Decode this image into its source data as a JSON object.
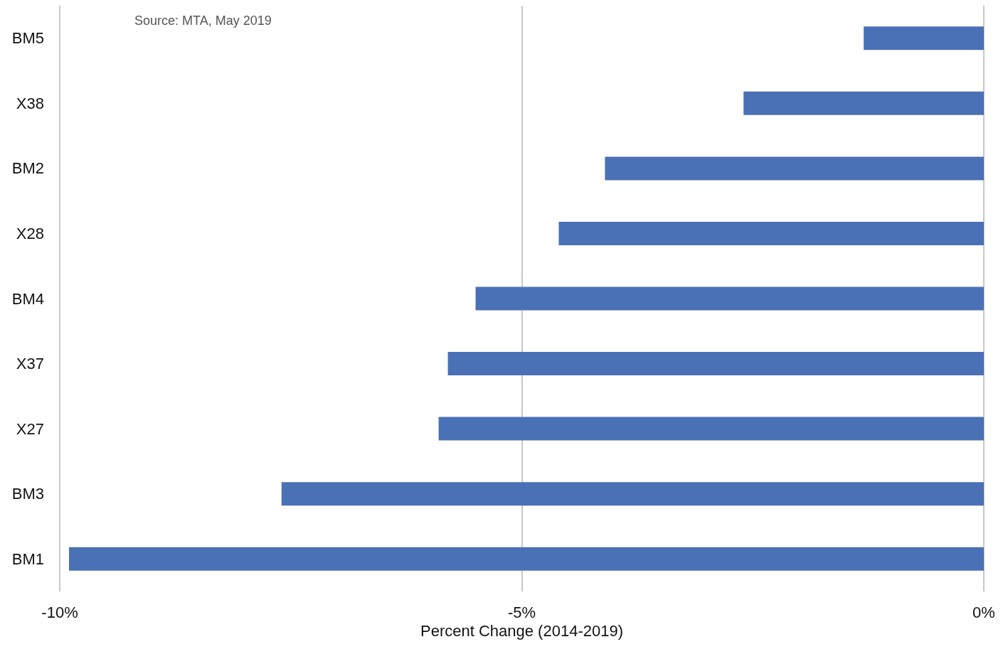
{
  "chart_data": {
    "type": "bar",
    "orientation": "horizontal",
    "categories": [
      "BM5",
      "X38",
      "BM2",
      "X28",
      "BM4",
      "X37",
      "X27",
      "BM3",
      "BM1"
    ],
    "values": [
      -1.3,
      -2.6,
      -4.1,
      -4.6,
      -5.5,
      -5.8,
      -5.9,
      -7.6,
      -9.9
    ],
    "color": "#4a70b5",
    "xlim": [
      -10,
      0
    ],
    "xticks": [
      {
        "value": -10,
        "label": "-10%"
      },
      {
        "value": -5,
        "label": "-5%"
      },
      {
        "value": 0,
        "label": "0%"
      }
    ],
    "xlabel": "Percent Change (2014-2019)",
    "annotations": [
      "Source: MTA, May 2019"
    ],
    "grid": "x"
  }
}
